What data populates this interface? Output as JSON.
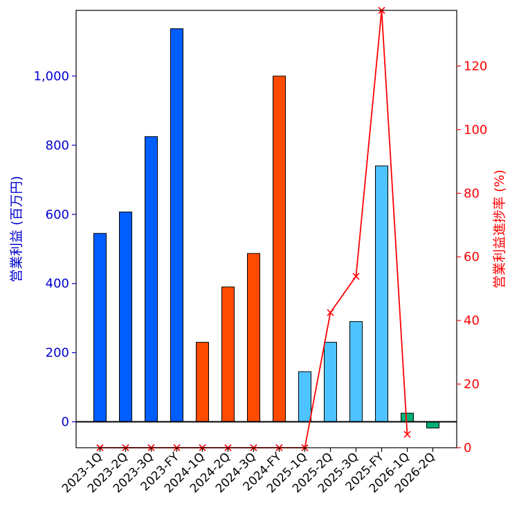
{
  "chart_data": {
    "type": "bar",
    "title": "",
    "xlabel": "",
    "categories": [
      "2023-1Q",
      "2023-2Q",
      "2023-3Q",
      "2023-FY",
      "2024-1Q",
      "2024-2Q",
      "2024-3Q",
      "2024-FY",
      "2025-1Q",
      "2025-2Q",
      "2025-3Q",
      "2025-FY",
      "2026-1Q",
      "2026-2Q"
    ],
    "series": [
      {
        "name": "営業利益",
        "axis": "left",
        "type": "bar",
        "values": [
          545,
          607,
          825,
          1137,
          230,
          390,
          487,
          1000,
          145,
          230,
          290,
          740,
          25,
          -18
        ],
        "colors": [
          "#005dff",
          "#005dff",
          "#005dff",
          "#005dff",
          "#ff4b00",
          "#ff4b00",
          "#ff4b00",
          "#ff4b00",
          "#4dc4ff",
          "#4dc4ff",
          "#4dc4ff",
          "#4dc4ff",
          "#03af7a",
          "#03af7a"
        ]
      },
      {
        "name": "営業利益進捗率",
        "axis": "right",
        "type": "line",
        "color": "#ff0000",
        "marker": "x",
        "values": [
          0,
          0,
          0,
          0,
          0,
          0,
          0,
          0,
          0,
          42.5,
          53.9,
          137.5,
          4.2,
          null
        ]
      }
    ],
    "ylabel": "営業利益 (百万円)",
    "ylabel_right": "営業利益進捗率 (%)",
    "ylim": [
      -75,
      1190
    ],
    "ylim_right": [
      0,
      137.5
    ],
    "yticks_left": [
      0,
      200,
      400,
      600,
      800,
      1000
    ],
    "yticks_left_labels": [
      "0",
      "200",
      "400",
      "600",
      "800",
      "1,000"
    ],
    "yticks_right": [
      0,
      20,
      40,
      60,
      80,
      100,
      120
    ],
    "left_axis_color": "#0000cc",
    "right_axis_color": "#ff0000"
  }
}
